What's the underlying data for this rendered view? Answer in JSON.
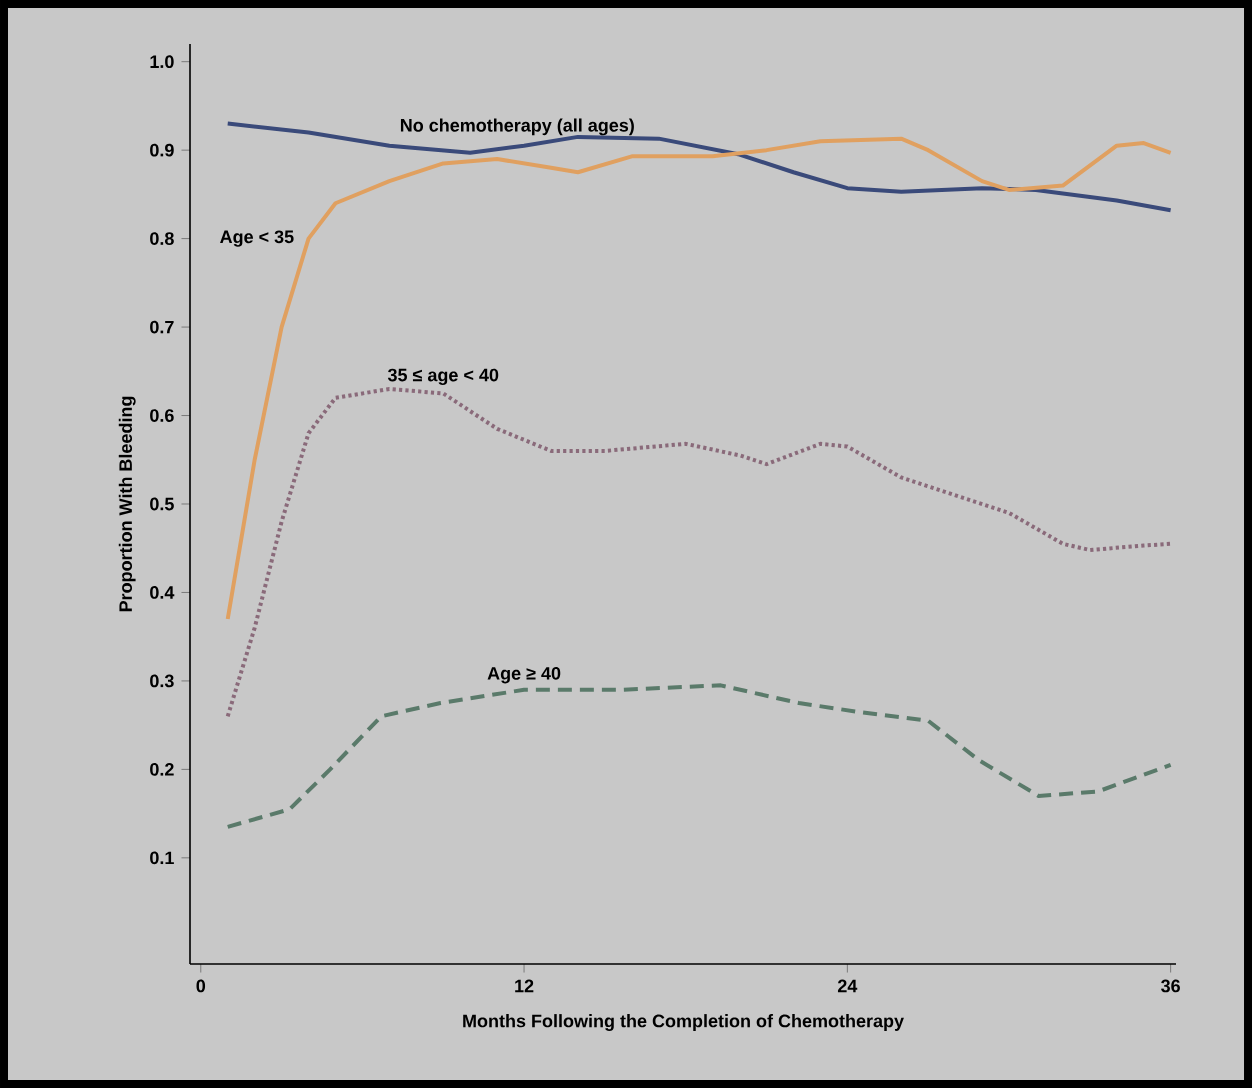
{
  "chart_data": {
    "type": "line",
    "xlabel": "Months Following the Completion of Chemotherapy",
    "ylabel": "Proportion With Bleeding",
    "xlim": [
      -0.4,
      36.2
    ],
    "xticks": [
      0,
      12,
      24,
      36
    ],
    "ylim": [
      -0.02,
      1.02
    ],
    "yticks": [
      {
        "value": 0.1,
        "label": "0.1"
      },
      {
        "value": 0.2,
        "label": "0.2"
      },
      {
        "value": 0.3,
        "label": "0.3"
      },
      {
        "value": 0.4,
        "label": "0.4"
      },
      {
        "value": 0.5,
        "label": "0.5"
      },
      {
        "value": 0.6,
        "label": "0.6"
      },
      {
        "value": 0.7,
        "label": "0.7"
      },
      {
        "value": 0.8,
        "label": "0.8"
      },
      {
        "value": 0.9,
        "label": "0.9"
      },
      {
        "value": 1.0,
        "label": "1.0"
      }
    ],
    "grid": false,
    "legend": false,
    "marker": "none",
    "series": [
      {
        "name": "No chemotherapy (all ages)",
        "color": "#3a4a7a",
        "line_style": "solid",
        "x": [
          1,
          4,
          7,
          10,
          12,
          14,
          17,
          20,
          22,
          24,
          26,
          29,
          31,
          34,
          36
        ],
        "values": [
          0.93,
          0.92,
          0.905,
          0.897,
          0.905,
          0.915,
          0.913,
          0.895,
          0.875,
          0.857,
          0.853,
          0.857,
          0.855,
          0.843,
          0.832
        ]
      },
      {
        "name": "Age < 35",
        "color": "#e0a060",
        "line_style": "solid",
        "x": [
          1,
          2,
          3,
          4,
          5,
          7,
          9,
          11,
          13,
          14,
          16,
          19,
          21,
          23,
          26,
          27,
          29,
          30,
          32,
          34,
          35,
          36
        ],
        "values": [
          0.37,
          0.55,
          0.7,
          0.8,
          0.84,
          0.865,
          0.885,
          0.89,
          0.88,
          0.875,
          0.893,
          0.893,
          0.9,
          0.91,
          0.913,
          0.9,
          0.865,
          0.855,
          0.86,
          0.905,
          0.908,
          0.897
        ]
      },
      {
        "name": "35 ≤ age < 40",
        "color": "#8a6a7a",
        "line_style": "dotted",
        "x": [
          1,
          2,
          3,
          4,
          5,
          7,
          9,
          11,
          13,
          15,
          18,
          20,
          21,
          23,
          24,
          26,
          28,
          30,
          32,
          33,
          35,
          36
        ],
        "values": [
          0.26,
          0.36,
          0.48,
          0.58,
          0.62,
          0.63,
          0.625,
          0.585,
          0.56,
          0.56,
          0.568,
          0.555,
          0.545,
          0.568,
          0.565,
          0.53,
          0.51,
          0.49,
          0.455,
          0.448,
          0.453,
          0.455
        ]
      },
      {
        "name": "Age ≥ 40",
        "color": "#5a7a6a",
        "line_style": "dashed",
        "x": [
          1,
          3.3,
          4.8,
          6.7,
          8.9,
          12,
          15.6,
          19.3,
          22.2,
          24.4,
          27,
          28.9,
          31.1,
          33.3,
          36
        ],
        "values": [
          0.135,
          0.155,
          0.2,
          0.26,
          0.275,
          0.29,
          0.29,
          0.295,
          0.275,
          0.265,
          0.255,
          0.21,
          0.17,
          0.175,
          0.205
        ]
      }
    ]
  }
}
